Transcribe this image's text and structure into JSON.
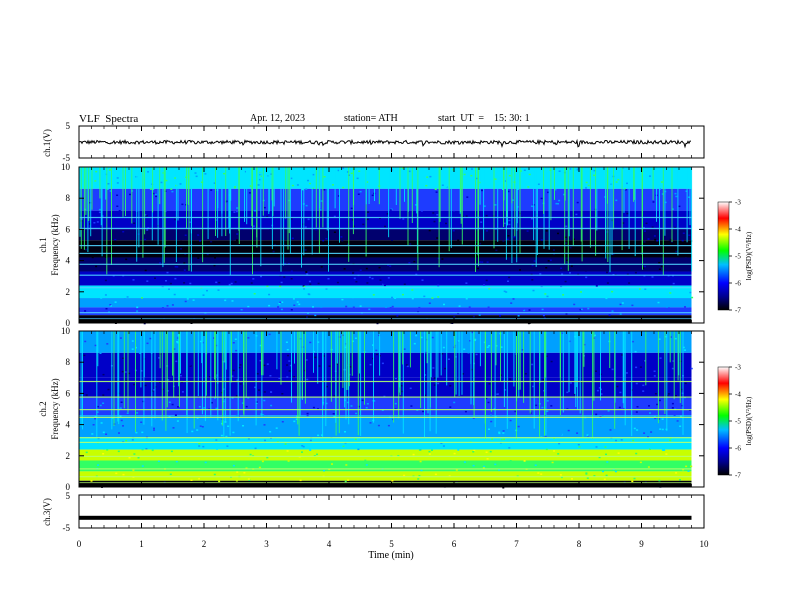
{
  "header": {
    "title": "VLF  Spectra",
    "date": "Apr. 12, 2023",
    "station": "station= ATH",
    "start": "start  UT  =    15: 30: 1"
  },
  "chart_data": {
    "type": "heatmap",
    "panels": [
      {
        "id": "ch1-waveform",
        "type": "line",
        "ylabel": "ch.1(V)",
        "ylim": [
          -5,
          5
        ],
        "yticks": [
          "5",
          "-5"
        ],
        "baseline": 0,
        "amplitude_range": [
          -0.8,
          0.3
        ]
      },
      {
        "id": "ch1-spectrogram",
        "type": "heatmap",
        "ylabel": "ch.1\nFrequency  (kHz)",
        "ylabel_line1": "ch.1",
        "ylabel_line2": "Frequency  (kHz)",
        "ylim": [
          0,
          10
        ],
        "yticks": [
          "0",
          "2",
          "4",
          "6",
          "8",
          "10"
        ],
        "band_change_min": 6.5
      },
      {
        "id": "ch2-spectrogram",
        "type": "heatmap",
        "ylabel_line1": "ch.2",
        "ylabel_line2": "Frequency  (kHz)",
        "ylim": [
          0,
          10
        ],
        "yticks": [
          "0",
          "2",
          "4",
          "6",
          "8",
          "10"
        ]
      },
      {
        "id": "ch3-waveform",
        "type": "line",
        "ylabel": "ch.3(V)",
        "ylim": [
          -5,
          5
        ],
        "yticks": [
          "5",
          "-5"
        ],
        "constant_value": -1.9
      }
    ],
    "xlabel": "Time  (min)",
    "xlim": [
      0,
      10
    ],
    "xticks": [
      "0",
      "1",
      "2",
      "3",
      "4",
      "5",
      "6",
      "7",
      "8",
      "9",
      "10"
    ],
    "data_end_min": 9.8,
    "colorbar": {
      "label": "log(PSD)(V²/Hz)",
      "range": [
        -7,
        -3
      ],
      "ticks": [
        "-3",
        "-4",
        "-5",
        "-6",
        "-7"
      ],
      "colors": [
        "#000000",
        "#00008b",
        "#0000ff",
        "#00bfff",
        "#00ff00",
        "#ffff00",
        "#ff0000",
        "#ffffff"
      ]
    }
  }
}
